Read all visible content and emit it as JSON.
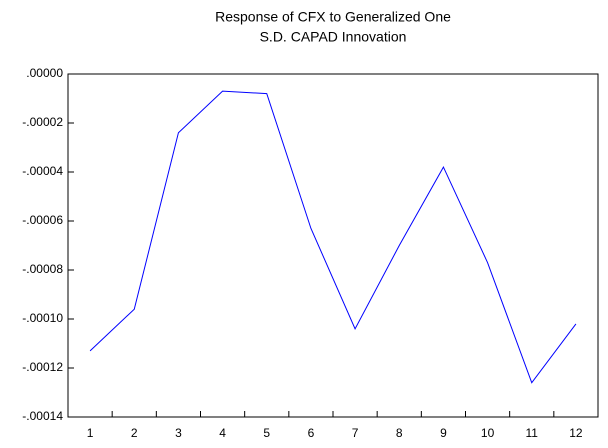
{
  "chart_data": {
    "type": "line",
    "title": "Response of CFX to Generalized One",
    "subtitle": "S.D. CAPAD Innovation",
    "categories": [
      "1",
      "2",
      "3",
      "4",
      "5",
      "6",
      "7",
      "8",
      "9",
      "10",
      "11",
      "12"
    ],
    "values": [
      -0.000113,
      -9.6e-05,
      -2.4e-05,
      -7e-06,
      -8e-06,
      -6.3e-05,
      -0.000104,
      -7e-05,
      -3.8e-05,
      -7.7e-05,
      -0.000126,
      -0.000102
    ],
    "color": "#0000ff",
    "ylim": [
      -0.00014,
      0
    ],
    "yticks": [
      {
        "value": 0,
        "label": ".00000"
      },
      {
        "value": -2e-05,
        "label": "-.00002"
      },
      {
        "value": -4e-05,
        "label": "-.00004"
      },
      {
        "value": -6e-05,
        "label": "-.00006"
      },
      {
        "value": -8e-05,
        "label": "-.00008"
      },
      {
        "value": -0.0001,
        "label": "-.00010"
      },
      {
        "value": -0.00012,
        "label": "-.00012"
      },
      {
        "value": -0.00014,
        "label": "-.00014"
      }
    ],
    "grid": false
  }
}
